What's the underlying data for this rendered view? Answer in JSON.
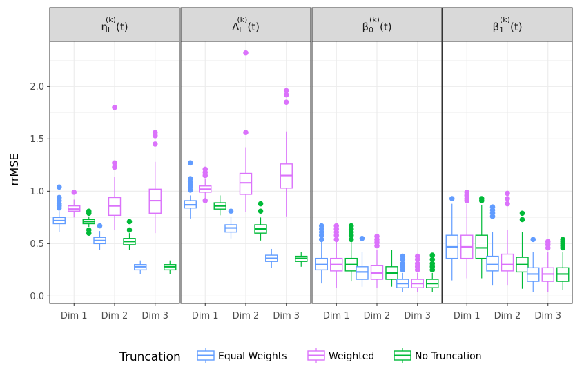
{
  "chart_data": {
    "type": "boxplot",
    "ylabel": "rrMSE",
    "xlabel": "",
    "ylim": [
      -0.07,
      2.43
    ],
    "yticks": [
      0.0,
      0.5,
      1.0,
      1.5,
      2.0
    ],
    "ytick_labels": [
      "0.0",
      "0.5",
      "1.0",
      "1.5",
      "2.0"
    ],
    "grid": true,
    "categories": [
      "Dim 1",
      "Dim 2",
      "Dim 3"
    ],
    "legend": {
      "title": "Truncation",
      "position": "bottom",
      "entries": [
        {
          "name": "Equal Weights",
          "color": "#619CFF"
        },
        {
          "name": "Weighted",
          "color": "#DB72FB"
        },
        {
          "name": "No Truncation",
          "color": "#00BA38"
        }
      ]
    },
    "panels": [
      {
        "strip": {
          "base": "η",
          "sub": "i",
          "sup": "(k)",
          "suffix": "(t)"
        },
        "groups": [
          {
            "category": "Dim 1",
            "boxes": [
              {
                "series": "Equal Weights",
                "lw": 0.61,
                "q1": 0.69,
                "med": 0.72,
                "q3": 0.75,
                "uw": 0.81,
                "outliers": [
                  0.84,
                  0.86,
                  0.88,
                  0.91,
                  0.94,
                  1.04
                ]
              },
              {
                "series": "Weighted",
                "lw": 0.75,
                "q1": 0.81,
                "med": 0.83,
                "q3": 0.86,
                "uw": 0.92,
                "outliers": [
                  0.99
                ]
              },
              {
                "series": "No Truncation",
                "lw": 0.66,
                "q1": 0.69,
                "med": 0.71,
                "q3": 0.73,
                "uw": 0.76,
                "outliers": [
                  0.6,
                  0.63,
                  0.79,
                  0.81
                ]
              }
            ]
          },
          {
            "category": "Dim 2",
            "boxes": [
              {
                "series": "Equal Weights",
                "lw": 0.44,
                "q1": 0.5,
                "med": 0.53,
                "q3": 0.56,
                "uw": 0.62,
                "outliers": [
                  0.67
                ]
              },
              {
                "series": "Weighted",
                "lw": 0.63,
                "q1": 0.77,
                "med": 0.86,
                "q3": 0.94,
                "uw": 1.14,
                "outliers": [
                  1.23,
                  1.27,
                  1.8
                ]
              },
              {
                "series": "No Truncation",
                "lw": 0.44,
                "q1": 0.49,
                "med": 0.52,
                "q3": 0.55,
                "uw": 0.6,
                "outliers": [
                  0.63,
                  0.71
                ]
              }
            ]
          },
          {
            "category": "Dim 3",
            "boxes": [
              {
                "series": "Equal Weights",
                "lw": 0.21,
                "q1": 0.25,
                "med": 0.28,
                "q3": 0.3,
                "uw": 0.34,
                "outliers": []
              },
              {
                "series": "Weighted",
                "lw": 0.6,
                "q1": 0.79,
                "med": 0.91,
                "q3": 1.02,
                "uw": 1.28,
                "outliers": [
                  1.45,
                  1.53,
                  1.56
                ]
              },
              {
                "series": "No Truncation",
                "lw": 0.21,
                "q1": 0.25,
                "med": 0.28,
                "q3": 0.3,
                "uw": 0.34,
                "outliers": []
              }
            ]
          }
        ]
      },
      {
        "strip": {
          "base": "Λ",
          "sub": "i",
          "sup": "(k)",
          "suffix": "(t)"
        },
        "groups": [
          {
            "category": "Dim 1",
            "boxes": [
              {
                "series": "Equal Weights",
                "lw": 0.74,
                "q1": 0.84,
                "med": 0.87,
                "q3": 0.91,
                "uw": 0.96,
                "outliers": [
                  1.01,
                  1.04,
                  1.06,
                  1.09,
                  1.12,
                  1.27
                ]
              },
              {
                "series": "Weighted",
                "lw": 0.93,
                "q1": 0.99,
                "med": 1.02,
                "q3": 1.05,
                "uw": 1.12,
                "outliers": [
                  0.91,
                  1.15,
                  1.18,
                  1.21
                ]
              },
              {
                "series": "No Truncation",
                "lw": 0.77,
                "q1": 0.83,
                "med": 0.86,
                "q3": 0.89,
                "uw": 0.96,
                "outliers": []
              }
            ]
          },
          {
            "category": "Dim 2",
            "boxes": [
              {
                "series": "Equal Weights",
                "lw": 0.55,
                "q1": 0.61,
                "med": 0.65,
                "q3": 0.68,
                "uw": 0.76,
                "outliers": [
                  0.81
                ]
              },
              {
                "series": "Weighted",
                "lw": 0.8,
                "q1": 0.97,
                "med": 1.08,
                "q3": 1.17,
                "uw": 1.42,
                "outliers": [
                  1.56,
                  2.32
                ]
              },
              {
                "series": "No Truncation",
                "lw": 0.53,
                "q1": 0.6,
                "med": 0.64,
                "q3": 0.68,
                "uw": 0.75,
                "outliers": [
                  0.81,
                  0.88
                ]
              }
            ]
          },
          {
            "category": "Dim 3",
            "boxes": [
              {
                "series": "Equal Weights",
                "lw": 0.27,
                "q1": 0.33,
                "med": 0.36,
                "q3": 0.39,
                "uw": 0.45,
                "outliers": []
              },
              {
                "series": "Weighted",
                "lw": 0.76,
                "q1": 1.03,
                "med": 1.15,
                "q3": 1.26,
                "uw": 1.57,
                "outliers": [
                  1.85,
                  1.92,
                  1.96
                ]
              },
              {
                "series": "No Truncation",
                "lw": 0.28,
                "q1": 0.33,
                "med": 0.36,
                "q3": 0.38,
                "uw": 0.42,
                "outliers": []
              }
            ]
          }
        ]
      },
      {
        "strip": {
          "base": "β",
          "sub": "0",
          "sup": "(k)",
          "suffix": "(t)"
        },
        "groups": [
          {
            "category": "Dim 1",
            "boxes": [
              {
                "series": "Equal Weights",
                "lw": 0.12,
                "q1": 0.25,
                "med": 0.3,
                "q3": 0.36,
                "uw": 0.52,
                "outliers": [
                  0.54,
                  0.58,
                  0.61,
                  0.64,
                  0.67
                ]
              },
              {
                "series": "Weighted",
                "lw": 0.08,
                "q1": 0.24,
                "med": 0.3,
                "q3": 0.36,
                "uw": 0.52,
                "outliers": [
                  0.54,
                  0.58,
                  0.61,
                  0.64,
                  0.67
                ]
              },
              {
                "series": "No Truncation",
                "lw": 0.14,
                "q1": 0.24,
                "med": 0.3,
                "q3": 0.36,
                "uw": 0.52,
                "outliers": [
                  0.54,
                  0.58,
                  0.61,
                  0.64,
                  0.67
                ]
              }
            ]
          },
          {
            "category": "Dim 2",
            "boxes": [
              {
                "series": "Equal Weights",
                "lw": 0.09,
                "q1": 0.16,
                "med": 0.23,
                "q3": 0.28,
                "uw": 0.42,
                "outliers": [
                  0.55
                ]
              },
              {
                "series": "Weighted",
                "lw": 0.08,
                "q1": 0.16,
                "med": 0.22,
                "q3": 0.29,
                "uw": 0.44,
                "outliers": [
                  0.48,
                  0.51,
                  0.54,
                  0.57
                ]
              },
              {
                "series": "No Truncation",
                "lw": 0.09,
                "q1": 0.16,
                "med": 0.22,
                "q3": 0.28,
                "uw": 0.44,
                "outliers": []
              }
            ]
          },
          {
            "category": "Dim 3",
            "boxes": [
              {
                "series": "Equal Weights",
                "lw": 0.04,
                "q1": 0.08,
                "med": 0.12,
                "q3": 0.16,
                "uw": 0.22,
                "outliers": [
                  0.25,
                  0.28,
                  0.31,
                  0.35,
                  0.38
                ]
              },
              {
                "series": "Weighted",
                "lw": 0.04,
                "q1": 0.08,
                "med": 0.12,
                "q3": 0.16,
                "uw": 0.22,
                "outliers": [
                  0.25,
                  0.28,
                  0.31,
                  0.35,
                  0.38
                ]
              },
              {
                "series": "No Truncation",
                "lw": 0.04,
                "q1": 0.08,
                "med": 0.12,
                "q3": 0.16,
                "uw": 0.22,
                "outliers": [
                  0.25,
                  0.28,
                  0.31,
                  0.35,
                  0.39
                ]
              }
            ]
          }
        ]
      },
      {
        "strip": {
          "base": "β",
          "sub": "1",
          "sup": "(k)",
          "suffix": "(t)"
        },
        "groups": [
          {
            "category": "Dim 1",
            "boxes": [
              {
                "series": "Equal Weights",
                "lw": 0.15,
                "q1": 0.36,
                "med": 0.47,
                "q3": 0.58,
                "uw": 0.88,
                "outliers": [
                  0.93
                ]
              },
              {
                "series": "Weighted",
                "lw": 0.17,
                "q1": 0.36,
                "med": 0.47,
                "q3": 0.58,
                "uw": 0.88,
                "outliers": [
                  0.91,
                  0.93,
                  0.96,
                  0.99
                ]
              },
              {
                "series": "No Truncation",
                "lw": 0.17,
                "q1": 0.36,
                "med": 0.46,
                "q3": 0.58,
                "uw": 0.87,
                "outliers": [
                  0.91,
                  0.93
                ]
              }
            ]
          },
          {
            "category": "Dim 2",
            "boxes": [
              {
                "series": "Equal Weights",
                "lw": 0.1,
                "q1": 0.24,
                "med": 0.3,
                "q3": 0.38,
                "uw": 0.61,
                "outliers": [
                  0.76,
                  0.79,
                  0.82,
                  0.85
                ]
              },
              {
                "series": "Weighted",
                "lw": 0.1,
                "q1": 0.24,
                "med": 0.3,
                "q3": 0.4,
                "uw": 0.63,
                "outliers": [
                  0.88,
                  0.93,
                  0.98
                ]
              },
              {
                "series": "No Truncation",
                "lw": 0.07,
                "q1": 0.23,
                "med": 0.3,
                "q3": 0.37,
                "uw": 0.61,
                "outliers": [
                  0.73,
                  0.79
                ]
              }
            ]
          },
          {
            "category": "Dim 3",
            "boxes": [
              {
                "series": "Equal Weights",
                "lw": 0.04,
                "q1": 0.14,
                "med": 0.21,
                "q3": 0.27,
                "uw": 0.42,
                "outliers": [
                  0.54
                ]
              },
              {
                "series": "Weighted",
                "lw": 0.04,
                "q1": 0.14,
                "med": 0.21,
                "q3": 0.27,
                "uw": 0.42,
                "outliers": [
                  0.46,
                  0.49,
                  0.52
                ]
              },
              {
                "series": "No Truncation",
                "lw": 0.06,
                "q1": 0.14,
                "med": 0.21,
                "q3": 0.27,
                "uw": 0.42,
                "outliers": [
                  0.46,
                  0.48,
                  0.5,
                  0.52,
                  0.54
                ]
              }
            ]
          }
        ]
      }
    ]
  }
}
